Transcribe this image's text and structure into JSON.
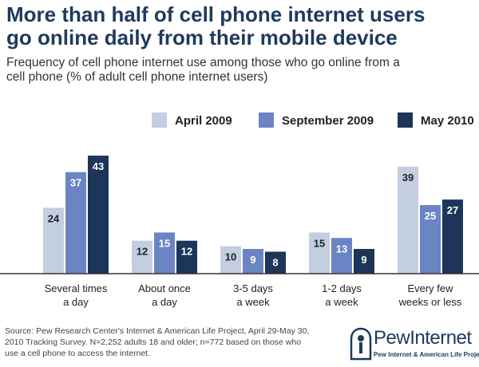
{
  "header": {
    "title_line1": "More than half of cell phone internet users",
    "title_line2": "go online daily from their mobile device",
    "subtitle_line1": "Frequency of cell phone internet use among those who go online from a",
    "subtitle_line2": "cell phone (% of adult cell phone internet users)"
  },
  "chart_data": {
    "type": "bar",
    "title": "More than half of cell phone internet users go online daily from their mobile device",
    "subtitle": "Frequency of cell phone internet use among those who go online from a cell phone (% of adult cell phone internet users)",
    "xlabel": "",
    "ylabel": "",
    "ylim": [
      0,
      45
    ],
    "grid": false,
    "legend_position": "top-right",
    "categories": [
      [
        "Several times",
        "a day"
      ],
      [
        "About once",
        "a day"
      ],
      [
        "3-5 days",
        "a week"
      ],
      [
        "1-2 days",
        "a week"
      ],
      [
        "Every few",
        "weeks or less"
      ]
    ],
    "series": [
      {
        "name": "April 2009",
        "color": "#c3cee0",
        "values": [
          24,
          12,
          10,
          15,
          39
        ]
      },
      {
        "name": "September 2009",
        "color": "#6b85c4",
        "values": [
          37,
          15,
          9,
          13,
          25
        ]
      },
      {
        "name": "May 2010",
        "color": "#1c3558",
        "values": [
          43,
          12,
          8,
          9,
          27
        ]
      }
    ]
  },
  "footer": {
    "source_line1": "Source: Pew Research Center's Internet & American Life Project, April 29-May 30,",
    "source_line2": "2010 Tracking Survey. N=2,252 adults 18 and older; n=772 based on those who",
    "source_line3": "use a cell phone to access the internet.",
    "logo_text": "PewInternet",
    "logo_tagline": "Pew Internet & American Life Project"
  }
}
